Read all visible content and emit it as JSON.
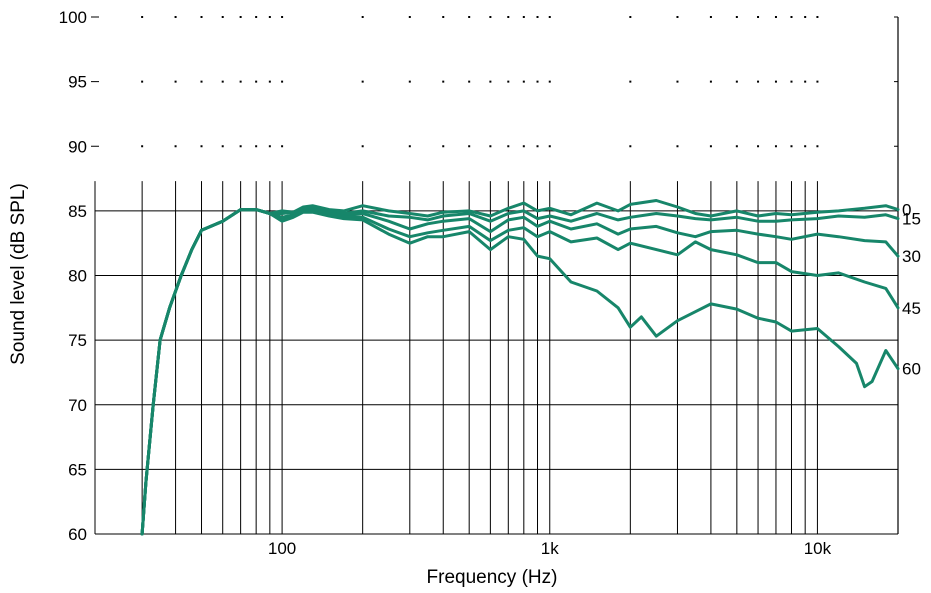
{
  "chart_data": {
    "type": "line",
    "xlabel": "Frequency (Hz)",
    "ylabel": "Sound level (dB SPL)",
    "x_scale": "log",
    "xlim": [
      20,
      20000
    ],
    "ylim": [
      60,
      100
    ],
    "yticks": [
      60,
      65,
      70,
      75,
      80,
      85,
      90,
      95,
      100
    ],
    "xticks": [
      {
        "value": 100,
        "label": "100"
      },
      {
        "value": 1000,
        "label": "1k"
      },
      {
        "value": 10000,
        "label": "10k"
      }
    ],
    "grid": true,
    "series_labels": [
      "0",
      "15",
      "30",
      "45",
      "60"
    ],
    "line_color": "#17866a",
    "series": [
      {
        "label_index": 0,
        "points": [
          [
            30,
            60
          ],
          [
            31,
            64
          ],
          [
            33,
            70
          ],
          [
            35,
            75
          ],
          [
            38,
            77.5
          ],
          [
            42,
            80
          ],
          [
            46,
            82
          ],
          [
            50,
            83.5
          ],
          [
            60,
            84.2
          ],
          [
            70,
            85.1
          ],
          [
            80,
            85.1
          ],
          [
            90,
            84.8
          ],
          [
            100,
            85.0
          ],
          [
            110,
            84.9
          ],
          [
            120,
            85.3
          ],
          [
            130,
            85.4
          ],
          [
            150,
            85.1
          ],
          [
            170,
            85.0
          ],
          [
            200,
            85.4
          ],
          [
            250,
            85.0
          ],
          [
            300,
            84.8
          ],
          [
            350,
            84.6
          ],
          [
            400,
            84.9
          ],
          [
            500,
            85.0
          ],
          [
            600,
            84.6
          ],
          [
            700,
            85.2
          ],
          [
            800,
            85.6
          ],
          [
            900,
            85.0
          ],
          [
            1000,
            85.2
          ],
          [
            1200,
            84.7
          ],
          [
            1500,
            85.6
          ],
          [
            1800,
            85.0
          ],
          [
            2000,
            85.5
          ],
          [
            2500,
            85.8
          ],
          [
            3000,
            85.3
          ],
          [
            3500,
            84.8
          ],
          [
            4000,
            84.6
          ],
          [
            5000,
            85.0
          ],
          [
            6000,
            84.6
          ],
          [
            7000,
            84.8
          ],
          [
            8000,
            84.7
          ],
          [
            10000,
            84.9
          ],
          [
            12000,
            85.0
          ],
          [
            15000,
            85.2
          ],
          [
            18000,
            85.4
          ],
          [
            20000,
            85.1
          ]
        ]
      },
      {
        "label_index": 1,
        "points": [
          [
            30,
            60
          ],
          [
            31,
            64
          ],
          [
            33,
            70
          ],
          [
            35,
            75
          ],
          [
            38,
            77.5
          ],
          [
            42,
            80
          ],
          [
            46,
            82
          ],
          [
            50,
            83.5
          ],
          [
            60,
            84.2
          ],
          [
            70,
            85.1
          ],
          [
            80,
            85.1
          ],
          [
            90,
            84.8
          ],
          [
            100,
            84.8
          ],
          [
            110,
            84.9
          ],
          [
            120,
            85.2
          ],
          [
            130,
            85.2
          ],
          [
            150,
            85.0
          ],
          [
            170,
            84.8
          ],
          [
            200,
            85.0
          ],
          [
            250,
            84.6
          ],
          [
            300,
            84.5
          ],
          [
            350,
            84.3
          ],
          [
            400,
            84.6
          ],
          [
            500,
            84.8
          ],
          [
            600,
            84.2
          ],
          [
            700,
            84.8
          ],
          [
            800,
            85.0
          ],
          [
            900,
            84.4
          ],
          [
            1000,
            84.6
          ],
          [
            1200,
            84.2
          ],
          [
            1500,
            84.8
          ],
          [
            1800,
            84.3
          ],
          [
            2000,
            84.5
          ],
          [
            2500,
            84.8
          ],
          [
            3000,
            84.6
          ],
          [
            3500,
            84.4
          ],
          [
            4000,
            84.3
          ],
          [
            5000,
            84.5
          ],
          [
            6000,
            84.2
          ],
          [
            7000,
            84.2
          ],
          [
            8000,
            84.3
          ],
          [
            10000,
            84.4
          ],
          [
            12000,
            84.6
          ],
          [
            15000,
            84.5
          ],
          [
            18000,
            84.7
          ],
          [
            20000,
            84.4
          ]
        ]
      },
      {
        "label_index": 2,
        "points": [
          [
            30,
            60
          ],
          [
            31,
            64
          ],
          [
            33,
            70
          ],
          [
            35,
            75
          ],
          [
            38,
            77.5
          ],
          [
            42,
            80
          ],
          [
            46,
            82
          ],
          [
            50,
            83.5
          ],
          [
            60,
            84.2
          ],
          [
            70,
            85.1
          ],
          [
            80,
            85.1
          ],
          [
            90,
            84.8
          ],
          [
            100,
            84.5
          ],
          [
            110,
            84.7
          ],
          [
            120,
            85.0
          ],
          [
            130,
            85.1
          ],
          [
            150,
            84.9
          ],
          [
            170,
            84.6
          ],
          [
            200,
            84.8
          ],
          [
            250,
            84.2
          ],
          [
            300,
            83.6
          ],
          [
            350,
            84.0
          ],
          [
            400,
            84.2
          ],
          [
            500,
            84.4
          ],
          [
            600,
            83.4
          ],
          [
            700,
            84.3
          ],
          [
            800,
            84.5
          ],
          [
            900,
            83.8
          ],
          [
            1000,
            84.2
          ],
          [
            1200,
            83.6
          ],
          [
            1500,
            84.0
          ],
          [
            1800,
            83.2
          ],
          [
            2000,
            83.6
          ],
          [
            2500,
            83.8
          ],
          [
            3000,
            83.3
          ],
          [
            3500,
            83.0
          ],
          [
            4000,
            83.4
          ],
          [
            5000,
            83.5
          ],
          [
            6000,
            83.2
          ],
          [
            7000,
            83.0
          ],
          [
            8000,
            82.8
          ],
          [
            10000,
            83.2
          ],
          [
            12000,
            83.0
          ],
          [
            15000,
            82.7
          ],
          [
            18000,
            82.6
          ],
          [
            20000,
            81.5
          ]
        ]
      },
      {
        "label_index": 3,
        "points": [
          [
            30,
            60
          ],
          [
            31,
            64
          ],
          [
            33,
            70
          ],
          [
            35,
            75
          ],
          [
            38,
            77.5
          ],
          [
            42,
            80
          ],
          [
            46,
            82
          ],
          [
            50,
            83.5
          ],
          [
            60,
            84.2
          ],
          [
            70,
            85.1
          ],
          [
            80,
            85.1
          ],
          [
            90,
            84.8
          ],
          [
            100,
            84.3
          ],
          [
            110,
            84.6
          ],
          [
            120,
            85.0
          ],
          [
            130,
            85.0
          ],
          [
            150,
            84.8
          ],
          [
            170,
            84.5
          ],
          [
            200,
            84.5
          ],
          [
            250,
            83.6
          ],
          [
            300,
            83.0
          ],
          [
            350,
            83.3
          ],
          [
            400,
            83.5
          ],
          [
            500,
            83.8
          ],
          [
            600,
            82.7
          ],
          [
            700,
            83.5
          ],
          [
            800,
            83.7
          ],
          [
            900,
            83.0
          ],
          [
            1000,
            83.4
          ],
          [
            1200,
            82.6
          ],
          [
            1500,
            82.9
          ],
          [
            1800,
            82.0
          ],
          [
            2000,
            82.5
          ],
          [
            2500,
            82.0
          ],
          [
            3000,
            81.6
          ],
          [
            3500,
            82.6
          ],
          [
            4000,
            82.0
          ],
          [
            5000,
            81.6
          ],
          [
            6000,
            81.0
          ],
          [
            7000,
            81.0
          ],
          [
            8000,
            80.3
          ],
          [
            10000,
            80.0
          ],
          [
            12000,
            80.2
          ],
          [
            15000,
            79.5
          ],
          [
            18000,
            79.0
          ],
          [
            20000,
            77.5
          ]
        ]
      },
      {
        "label_index": 4,
        "points": [
          [
            30,
            60
          ],
          [
            31,
            64
          ],
          [
            33,
            70
          ],
          [
            35,
            75
          ],
          [
            38,
            77.5
          ],
          [
            42,
            80
          ],
          [
            46,
            82
          ],
          [
            50,
            83.5
          ],
          [
            60,
            84.2
          ],
          [
            70,
            85.1
          ],
          [
            80,
            85.1
          ],
          [
            90,
            84.8
          ],
          [
            100,
            84.2
          ],
          [
            110,
            84.5
          ],
          [
            120,
            84.9
          ],
          [
            130,
            84.9
          ],
          [
            150,
            84.6
          ],
          [
            170,
            84.4
          ],
          [
            200,
            84.3
          ],
          [
            250,
            83.2
          ],
          [
            300,
            82.5
          ],
          [
            350,
            83.0
          ],
          [
            400,
            83.0
          ],
          [
            500,
            83.4
          ],
          [
            600,
            82.0
          ],
          [
            700,
            83.0
          ],
          [
            800,
            82.8
          ],
          [
            900,
            81.5
          ],
          [
            1000,
            81.3
          ],
          [
            1200,
            79.5
          ],
          [
            1500,
            78.8
          ],
          [
            1800,
            77.5
          ],
          [
            2000,
            76.0
          ],
          [
            2200,
            76.8
          ],
          [
            2500,
            75.3
          ],
          [
            3000,
            76.5
          ],
          [
            3500,
            77.2
          ],
          [
            4000,
            77.8
          ],
          [
            5000,
            77.4
          ],
          [
            6000,
            76.7
          ],
          [
            7000,
            76.4
          ],
          [
            8000,
            75.7
          ],
          [
            10000,
            75.9
          ],
          [
            12000,
            74.5
          ],
          [
            14000,
            73.2
          ],
          [
            15000,
            71.4
          ],
          [
            16000,
            71.8
          ],
          [
            18000,
            74.2
          ],
          [
            20000,
            72.8
          ]
        ]
      }
    ]
  }
}
